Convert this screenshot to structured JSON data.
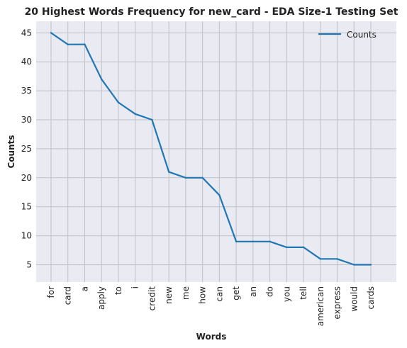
{
  "chart_data": {
    "type": "line",
    "title": "20 Highest Words Frequency for new_card - EDA Size-1 Testing Set",
    "xlabel": "Words",
    "ylabel": "Counts",
    "categories": [
      "for",
      "card",
      "a",
      "apply",
      "to",
      "i",
      "credit",
      "new",
      "me",
      "how",
      "can",
      "get",
      "an",
      "do",
      "you",
      "tell",
      "american",
      "express",
      "would",
      "cards"
    ],
    "series": [
      {
        "name": "Counts",
        "values": [
          45,
          43,
          43,
          37,
          33,
          31,
          30,
          21,
          20,
          20,
          17,
          9,
          9,
          9,
          8,
          8,
          6,
          6,
          5,
          5
        ],
        "color": "#1f77b4"
      }
    ],
    "yticks": [
      5,
      10,
      15,
      20,
      25,
      30,
      35,
      40,
      45
    ],
    "ylim": [
      2.0,
      47.0
    ],
    "grid": true,
    "legend": "top-right",
    "background": "#eaeaf2",
    "grid_color": "#c0c0c8"
  }
}
